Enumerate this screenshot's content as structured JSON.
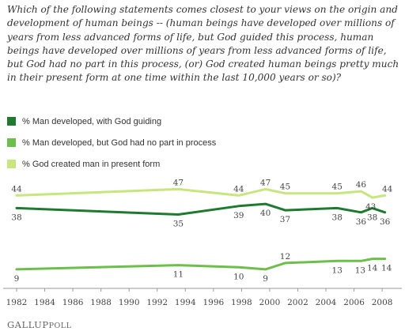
{
  "question": "Which of the following statements comes closest to your views on the origin and development of human beings -- (human beings have developed over millions of years from less advanced forms of life, but God guided this process, human beings have developed over millions of years from less advanced forms of life, but God had no part in this process, (or) God created human beings pretty much in their present form at one time within the last 10,000 years or so)?",
  "footer": {
    "brand_main": "GALLUP",
    "brand_poll": "POLL"
  },
  "chart_data": {
    "type": "line",
    "title": "",
    "xlabel": "",
    "ylabel": "",
    "x_ticks": [
      "1982",
      "1984",
      "1986",
      "1988",
      "1990",
      "1992",
      "1994",
      "1996",
      "1998",
      "2000",
      "2002",
      "2004",
      "2006",
      "2008"
    ],
    "xlim": [
      1982,
      2008.5
    ],
    "ylim": [
      0,
      55
    ],
    "grid": false,
    "legend_position": "top-left",
    "series": [
      {
        "name": "% Man developed, with God guiding",
        "color": "#1e7a2e",
        "points": [
          [
            1982,
            38
          ],
          [
            1993.5,
            35
          ],
          [
            1997.8,
            39
          ],
          [
            1999.7,
            40
          ],
          [
            2001.1,
            37
          ],
          [
            2004.8,
            38
          ],
          [
            2006.5,
            36
          ],
          [
            2007.3,
            38
          ],
          [
            2008.2,
            36
          ]
        ]
      },
      {
        "name": "% Man developed, but God had no part in process",
        "color": "#6cbf4a",
        "points": [
          [
            1982,
            9
          ],
          [
            1993.5,
            11
          ],
          [
            1997.8,
            10
          ],
          [
            1999.7,
            9
          ],
          [
            2001.1,
            12
          ],
          [
            2004.8,
            13
          ],
          [
            2006.5,
            13
          ],
          [
            2007.3,
            14
          ],
          [
            2008.2,
            14
          ]
        ]
      },
      {
        "name": "% God created man in present form",
        "color": "#c7e67d",
        "points": [
          [
            1982,
            44
          ],
          [
            1993.5,
            47
          ],
          [
            1997.8,
            44
          ],
          [
            1999.7,
            47
          ],
          [
            2001.1,
            45
          ],
          [
            2004.8,
            45
          ],
          [
            2006.5,
            46
          ],
          [
            2007.3,
            43
          ],
          [
            2008.2,
            44
          ]
        ]
      }
    ]
  }
}
